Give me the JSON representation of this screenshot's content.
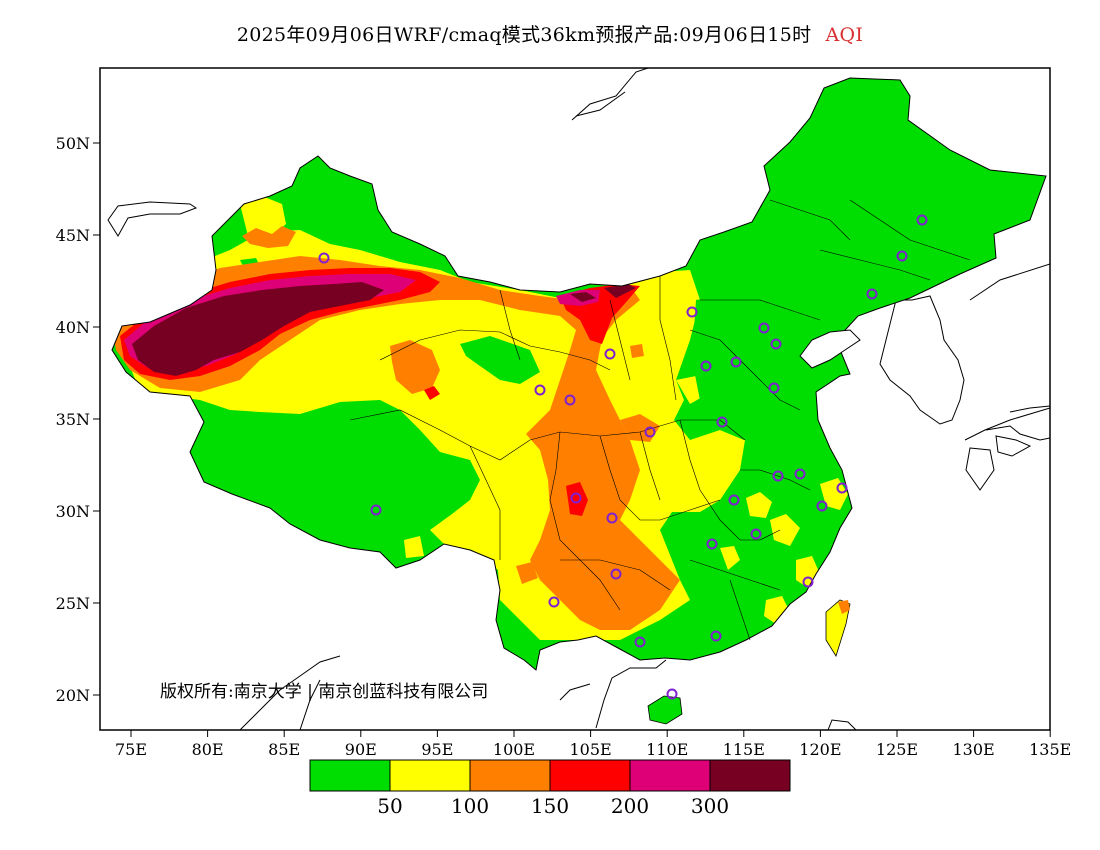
{
  "title": {
    "main": "2025年09月06日WRF/cmaq模式36km预报产品:09月06日15时",
    "variable": "AQI",
    "variable_color": "#d83030"
  },
  "map": {
    "lat_ticks": [
      "50N",
      "45N",
      "40N",
      "35N",
      "30N",
      "25N",
      "20N"
    ],
    "lon_ticks": [
      "75E",
      "80E",
      "85E",
      "90E",
      "95E",
      "100E",
      "105E",
      "110E",
      "115E",
      "120E",
      "125E",
      "130E",
      "135E"
    ],
    "lon_range": [
      73,
      135
    ],
    "lat_range": [
      18,
      54
    ]
  },
  "legend": {
    "colors": [
      "#00dd00",
      "#ffff00",
      "#ff8000",
      "#ff0000",
      "#dd0077",
      "#770022"
    ],
    "labels": [
      "50",
      "100",
      "150",
      "200",
      "300"
    ]
  },
  "copyright": "版权所有:南京大学 | 南京创蓝科技有限公司",
  "palette": {
    "good": "#00dd00",
    "moderate": "#ffff00",
    "sensitive": "#ff8000",
    "unhealthy": "#ff0000",
    "very_unhealthy": "#dd0077",
    "hazardous": "#770022",
    "station_marker": "#8020d0"
  }
}
